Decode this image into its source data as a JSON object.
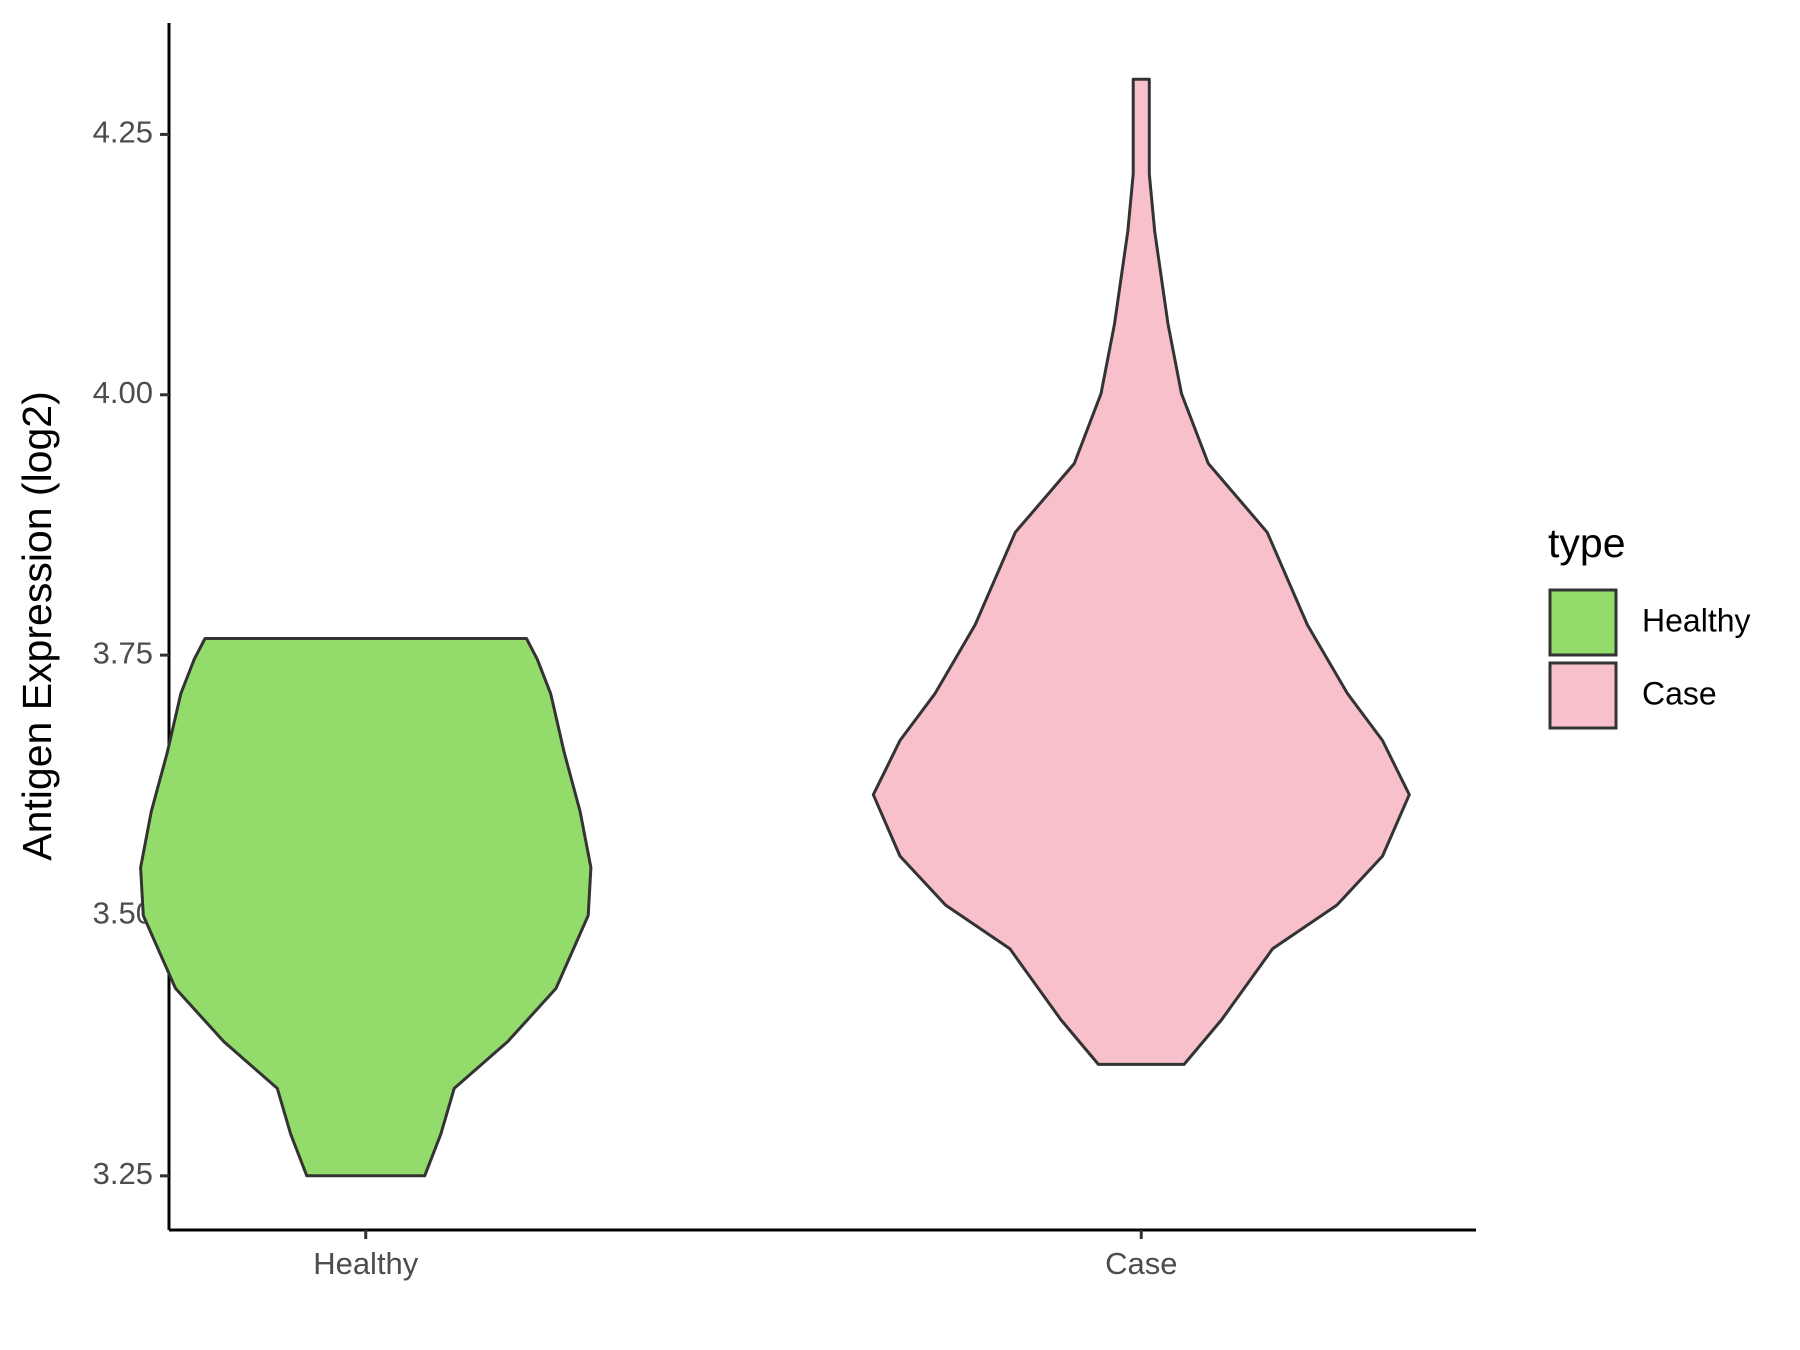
{
  "chart_data": {
    "type": "violin",
    "y_label": "Antigen Expression (log2)",
    "categories": [
      "Healthy",
      "Case"
    ],
    "legend_title": "type",
    "legend_position": "right",
    "ylim": [
      3.198,
      4.357
    ],
    "yticks": [
      3.25,
      {
        "value": 3.5,
        "label": "3.50"
      },
      {
        "value": 3.75,
        "label": "3.75"
      },
      {
        "value": 4.0,
        "label": "4.00"
      },
      4.25
    ],
    "series": [
      {
        "name": "Healthy",
        "color": "#93dc6b",
        "y": [
          3.25,
          3.29,
          3.334,
          3.379,
          3.43,
          3.5,
          3.546,
          3.6,
          3.657,
          3.713,
          3.746,
          3.766
        ],
        "density": [
          0.22,
          0.28,
          0.33,
          0.53,
          0.71,
          0.83,
          0.84,
          0.8,
          0.74,
          0.69,
          0.64,
          0.6
        ]
      },
      {
        "name": "Case",
        "color": "#f7c0cb",
        "y": [
          3.357,
          3.4,
          3.468,
          3.51,
          3.557,
          3.616,
          3.668,
          3.713,
          3.779,
          3.868,
          3.934,
          4.001,
          4.068,
          4.157,
          4.212,
          4.268,
          4.303
        ],
        "density": [
          0.16,
          0.3,
          0.49,
          0.73,
          0.9,
          1.0,
          0.9,
          0.77,
          0.62,
          0.47,
          0.25,
          0.15,
          0.1,
          0.05,
          0.03,
          0.03,
          0.03
        ]
      }
    ]
  }
}
